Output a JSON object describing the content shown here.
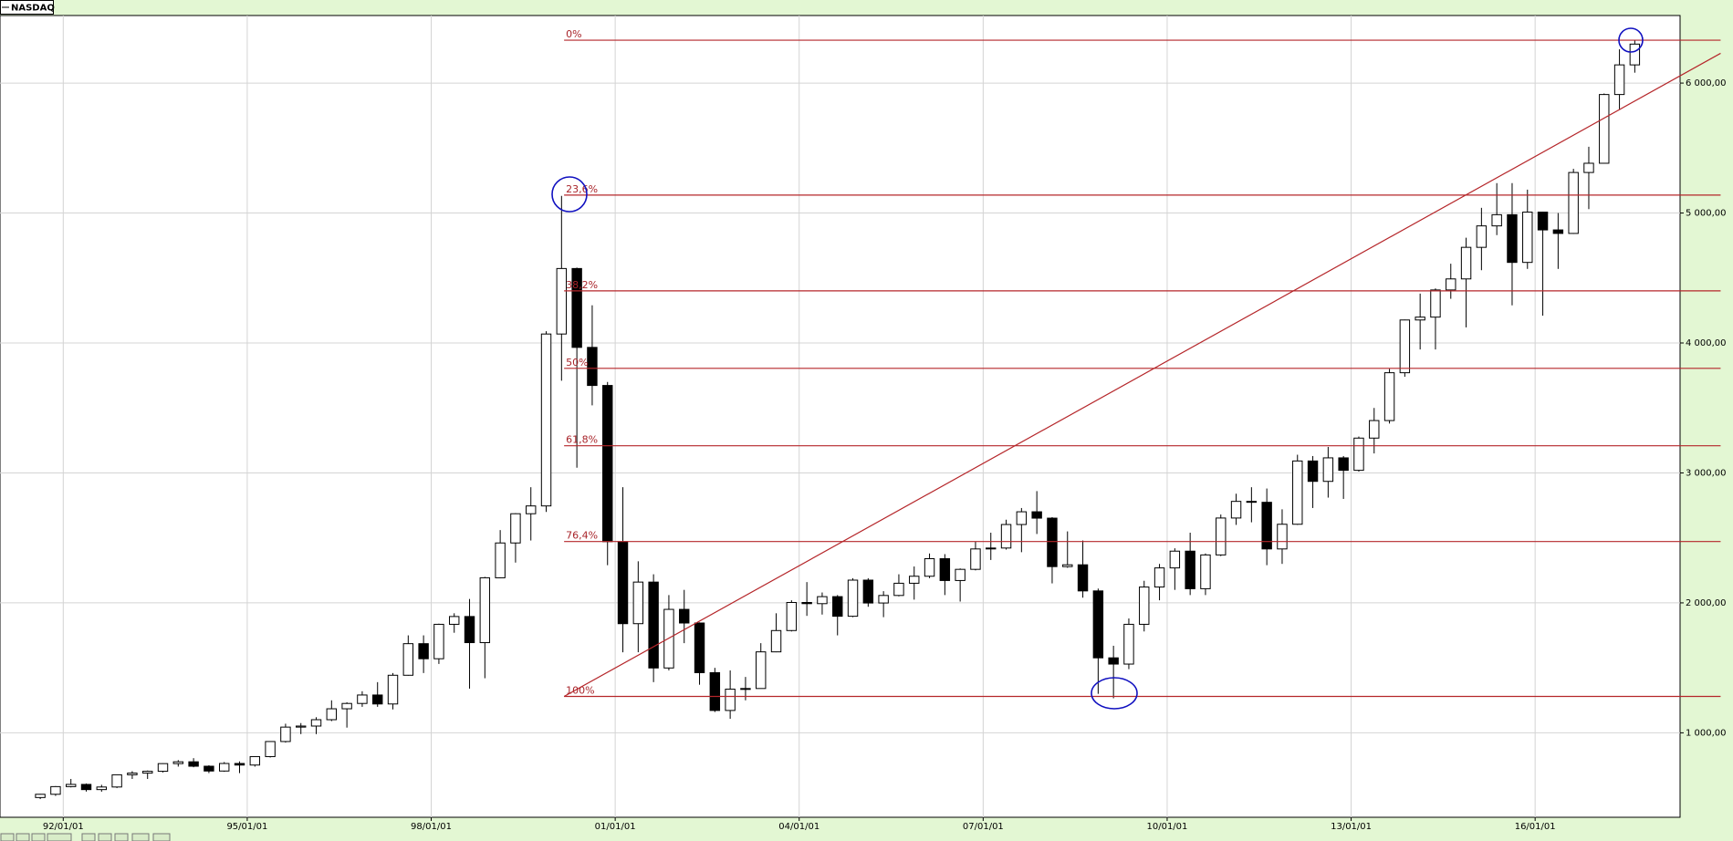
{
  "chart_data": {
    "type": "candlestick",
    "title": "NASDAQ",
    "x": [
      "91/07/01",
      "91/10/01",
      "92/01/01",
      "92/04/01",
      "92/07/01",
      "92/10/01",
      "93/01/01",
      "93/04/01",
      "93/07/01",
      "93/10/01",
      "94/01/01",
      "94/04/01",
      "94/07/01",
      "94/10/01",
      "95/01/01",
      "95/04/01",
      "95/07/01",
      "95/10/01",
      "96/01/01",
      "96/04/01",
      "96/07/01",
      "96/10/01",
      "97/01/01",
      "97/04/01",
      "97/07/01",
      "97/10/01",
      "98/01/01",
      "98/04/01",
      "98/07/01",
      "98/10/01",
      "99/01/01",
      "99/04/01",
      "99/07/01",
      "99/10/01",
      "00/01/01",
      "00/04/01",
      "00/07/01",
      "00/10/01",
      "01/01/01",
      "01/04/01",
      "01/07/01",
      "01/10/01",
      "02/01/01",
      "02/04/01",
      "02/07/01",
      "02/10/01",
      "03/01/01",
      "03/04/01",
      "03/07/01",
      "03/10/01",
      "04/01/01",
      "04/04/01",
      "04/07/01",
      "04/10/01",
      "05/01/01",
      "05/04/01",
      "05/07/01",
      "05/10/01",
      "06/01/01",
      "06/04/01",
      "06/07/01",
      "06/10/01",
      "07/01/01",
      "07/04/01",
      "07/07/01",
      "07/10/01",
      "08/01/01",
      "08/04/01",
      "08/07/01",
      "08/10/01",
      "09/01/01",
      "09/04/01",
      "09/07/01",
      "09/10/01",
      "10/01/01",
      "10/04/01",
      "10/07/01",
      "10/10/01",
      "11/01/01",
      "11/04/01",
      "11/07/01",
      "11/10/01",
      "12/01/01",
      "12/04/01",
      "12/07/01",
      "12/10/01",
      "13/01/01",
      "13/04/01",
      "13/07/01",
      "13/10/01",
      "14/01/01",
      "14/04/01",
      "14/07/01",
      "14/10/01",
      "15/01/01",
      "15/04/01",
      "15/07/01",
      "15/10/01",
      "16/01/01",
      "16/04/01",
      "16/07/01",
      "16/10/01",
      "17/01/01",
      "17/04/01",
      "17/07/01"
    ],
    "open": [
      502,
      527,
      586,
      603,
      563,
      583,
      677,
      690,
      704,
      763,
      777,
      743,
      706,
      764,
      752,
      817,
      933,
      1044,
      1052,
      1101,
      1185,
      1226,
      1291,
      1222,
      1443,
      1686,
      1570,
      1835,
      1895,
      1694,
      2193,
      2461,
      2686,
      2746,
      4069,
      4573,
      3966,
      3673,
      2471,
      1840,
      2160,
      1499,
      1950,
      1845,
      1463,
      1172,
      1336,
      1341,
      1623,
      1787,
      2003,
      1994,
      2048,
      1897,
      2175,
      1999,
      2057,
      2151,
      2205,
      2340,
      2172,
      2258,
      2415,
      2422,
      2603,
      2701,
      2652,
      2279,
      2293,
      2092,
      1577,
      1529,
      1835,
      2122,
      2269,
      2398,
      2109,
      2369,
      2653,
      2781,
      2774,
      2415,
      2605,
      3092,
      2935,
      3116,
      3020,
      3268,
      3403,
      3771,
      4177,
      4199,
      4408,
      4493,
      4736,
      4901,
      4987,
      4620,
      5007,
      4870,
      4843,
      5312,
      5383,
      5912,
      6140
    ],
    "high": [
      530,
      590,
      645,
      610,
      600,
      680,
      705,
      710,
      765,
      790,
      805,
      750,
      775,
      780,
      820,
      935,
      1070,
      1075,
      1120,
      1250,
      1235,
      1320,
      1390,
      1460,
      1750,
      1750,
      1840,
      1920,
      2030,
      2200,
      2560,
      2690,
      2890,
      4090,
      5132,
      4580,
      4290,
      3700,
      2890,
      2320,
      2220,
      2060,
      2100,
      1850,
      1500,
      1480,
      1430,
      1690,
      1920,
      2020,
      2160,
      2080,
      2060,
      2190,
      2190,
      2090,
      2220,
      2280,
      2380,
      2375,
      2265,
      2470,
      2540,
      2640,
      2730,
      2860,
      2660,
      2550,
      2480,
      2110,
      1670,
      1880,
      2170,
      2300,
      2420,
      2540,
      2380,
      2680,
      2840,
      2890,
      2880,
      2720,
      3140,
      3130,
      3200,
      3130,
      3280,
      3500,
      3800,
      4180,
      4380,
      4420,
      4610,
      4810,
      5040,
      5230,
      5230,
      5180,
      5010,
      5000,
      5340,
      5510,
      5920,
      6260,
      6330
    ],
    "low": [
      490,
      515,
      580,
      548,
      547,
      575,
      645,
      645,
      695,
      740,
      735,
      690,
      700,
      690,
      740,
      810,
      925,
      990,
      990,
      1090,
      1040,
      1200,
      1200,
      1180,
      1440,
      1460,
      1530,
      1770,
      1340,
      1420,
      2190,
      2310,
      2480,
      2700,
      3710,
      3040,
      3520,
      2290,
      1620,
      1620,
      1390,
      1480,
      1690,
      1370,
      1160,
      1108,
      1250,
      1340,
      1620,
      1780,
      1900,
      1910,
      1750,
      1890,
      1970,
      1890,
      2050,
      2025,
      2190,
      2060,
      2010,
      2250,
      2330,
      2410,
      2390,
      2530,
      2150,
      2270,
      2040,
      1300,
      1266,
      1490,
      1780,
      2020,
      2100,
      2060,
      2060,
      2360,
      2600,
      2620,
      2290,
      2300,
      2600,
      2730,
      2810,
      2800,
      3010,
      3150,
      3380,
      3740,
      3950,
      3950,
      4340,
      4120,
      4560,
      4830,
      4290,
      4570,
      4210,
      4570,
      4840,
      5030,
      5380,
      5800,
      6080
    ],
    "close": [
      527,
      586,
      603,
      563,
      583,
      677,
      690,
      704,
      763,
      777,
      743,
      706,
      764,
      752,
      817,
      933,
      1044,
      1052,
      1101,
      1185,
      1226,
      1291,
      1222,
      1443,
      1686,
      1570,
      1835,
      1895,
      1694,
      2193,
      2461,
      2686,
      2746,
      4069,
      4573,
      3966,
      3673,
      2471,
      1840,
      2160,
      1499,
      1950,
      1845,
      1463,
      1172,
      1336,
      1341,
      1623,
      1787,
      2003,
      1994,
      2048,
      1897,
      2175,
      1999,
      2057,
      2151,
      2205,
      2340,
      2172,
      2258,
      2415,
      2422,
      2603,
      2701,
      2652,
      2279,
      2293,
      2092,
      1577,
      1529,
      1835,
      2122,
      2269,
      2398,
      2109,
      2369,
      2653,
      2781,
      2774,
      2415,
      2605,
      3092,
      2935,
      3116,
      3020,
      3268,
      3403,
      3771,
      4177,
      4199,
      4408,
      4493,
      4736,
      4901,
      4987,
      4620,
      5007,
      4870,
      4843,
      5312,
      5383,
      5912,
      6140,
      6300
    ],
    "up_color": "#ffffff",
    "down_color": "#000000",
    "xlim": [
      "90/12/20",
      "18/05/12"
    ],
    "xticks": [
      "92/01/01",
      "95/01/01",
      "98/01/01",
      "01/01/01",
      "04/01/01",
      "07/01/01",
      "10/01/01",
      "13/01/01",
      "16/01/01"
    ],
    "ylim": [
      350,
      6520
    ],
    "yticks": [
      {
        "value": 1000,
        "label": "1 000,00"
      },
      {
        "value": 2000,
        "label": "2 000,00"
      },
      {
        "value": 3000,
        "label": "3 000,00"
      },
      {
        "value": 4000,
        "label": "4 000,00"
      },
      {
        "value": 5000,
        "label": "5 000,00"
      },
      {
        "value": 6000,
        "label": "6 000,00"
      }
    ],
    "grid": true,
    "fibonacci": {
      "color": "#b5262a",
      "x": [
        "00/03/01",
        "19/01/10"
      ],
      "levels": [
        {
          "value": 6330,
          "label": "0%"
        },
        {
          "value": 5138,
          "label": "23,6%"
        },
        {
          "value": 4401,
          "label": "38,2%"
        },
        {
          "value": 3805,
          "label": "50%"
        },
        {
          "value": 3209,
          "label": "61,8%"
        },
        {
          "value": 2472,
          "label": "76,4%"
        },
        {
          "value": 1280,
          "label": "100%"
        }
      ]
    },
    "trendline": {
      "color": "#b5262a",
      "x": [
        "00/03/01",
        "19/01/10"
      ],
      "y": [
        1280,
        6229
      ]
    }
  }
}
